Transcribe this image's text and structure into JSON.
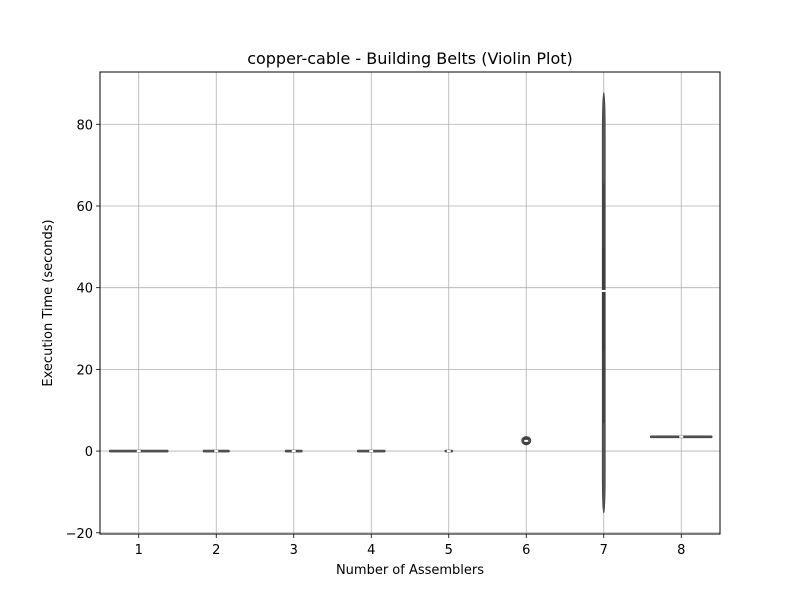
{
  "chart_data": {
    "type": "violin",
    "title": "copper-cable - Building Belts (Violin Plot)",
    "xlabel": "Number of Assemblers",
    "ylabel": "Execution Time (seconds)",
    "categories": [
      "1",
      "2",
      "3",
      "4",
      "5",
      "6",
      "7",
      "8"
    ],
    "ylim": [
      -20.3,
      92.8
    ],
    "yticks": [
      -20,
      0,
      20,
      40,
      60,
      80
    ],
    "ytick_labels": [
      "−20",
      "0",
      "20",
      "40",
      "60",
      "80"
    ],
    "grid": true,
    "violins": [
      {
        "category": "1",
        "min": -0.1,
        "q1": -0.05,
        "median": 0.0,
        "q3": 0.05,
        "max": 0.1,
        "half_width": 0.38
      },
      {
        "category": "2",
        "min": -0.1,
        "q1": -0.05,
        "median": 0.0,
        "q3": 0.05,
        "max": 0.1,
        "half_width": 0.17
      },
      {
        "category": "3",
        "min": -0.1,
        "q1": -0.05,
        "median": 0.0,
        "q3": 0.05,
        "max": 0.1,
        "half_width": 0.11
      },
      {
        "category": "4",
        "min": -0.1,
        "q1": -0.05,
        "median": 0.0,
        "q3": 0.05,
        "max": 0.1,
        "half_width": 0.18
      },
      {
        "category": "5",
        "min": -0.1,
        "q1": -0.05,
        "median": 0.0,
        "q3": 0.05,
        "max": 0.1,
        "half_width": 0.05
      },
      {
        "category": "6",
        "min": 1.5,
        "q1": 1.8,
        "median": 2.5,
        "q3": 3.3,
        "max": 3.6,
        "half_width": 0.06
      },
      {
        "category": "7",
        "min": -15.2,
        "q1": 24.5,
        "median": 39.2,
        "q3": 49.5,
        "max": 87.8,
        "half_width": 0.02,
        "whisker_low": 6.8,
        "whisker_high": 65.5
      },
      {
        "category": "8",
        "min": 3.4,
        "q1": 3.5,
        "median": 3.5,
        "q3": 3.5,
        "max": 3.6,
        "half_width": 0.4
      }
    ],
    "colors": {
      "body": "#555555",
      "box": "#3f3f3f",
      "median": "#ffffff",
      "grid": "#b0b0b0"
    }
  }
}
